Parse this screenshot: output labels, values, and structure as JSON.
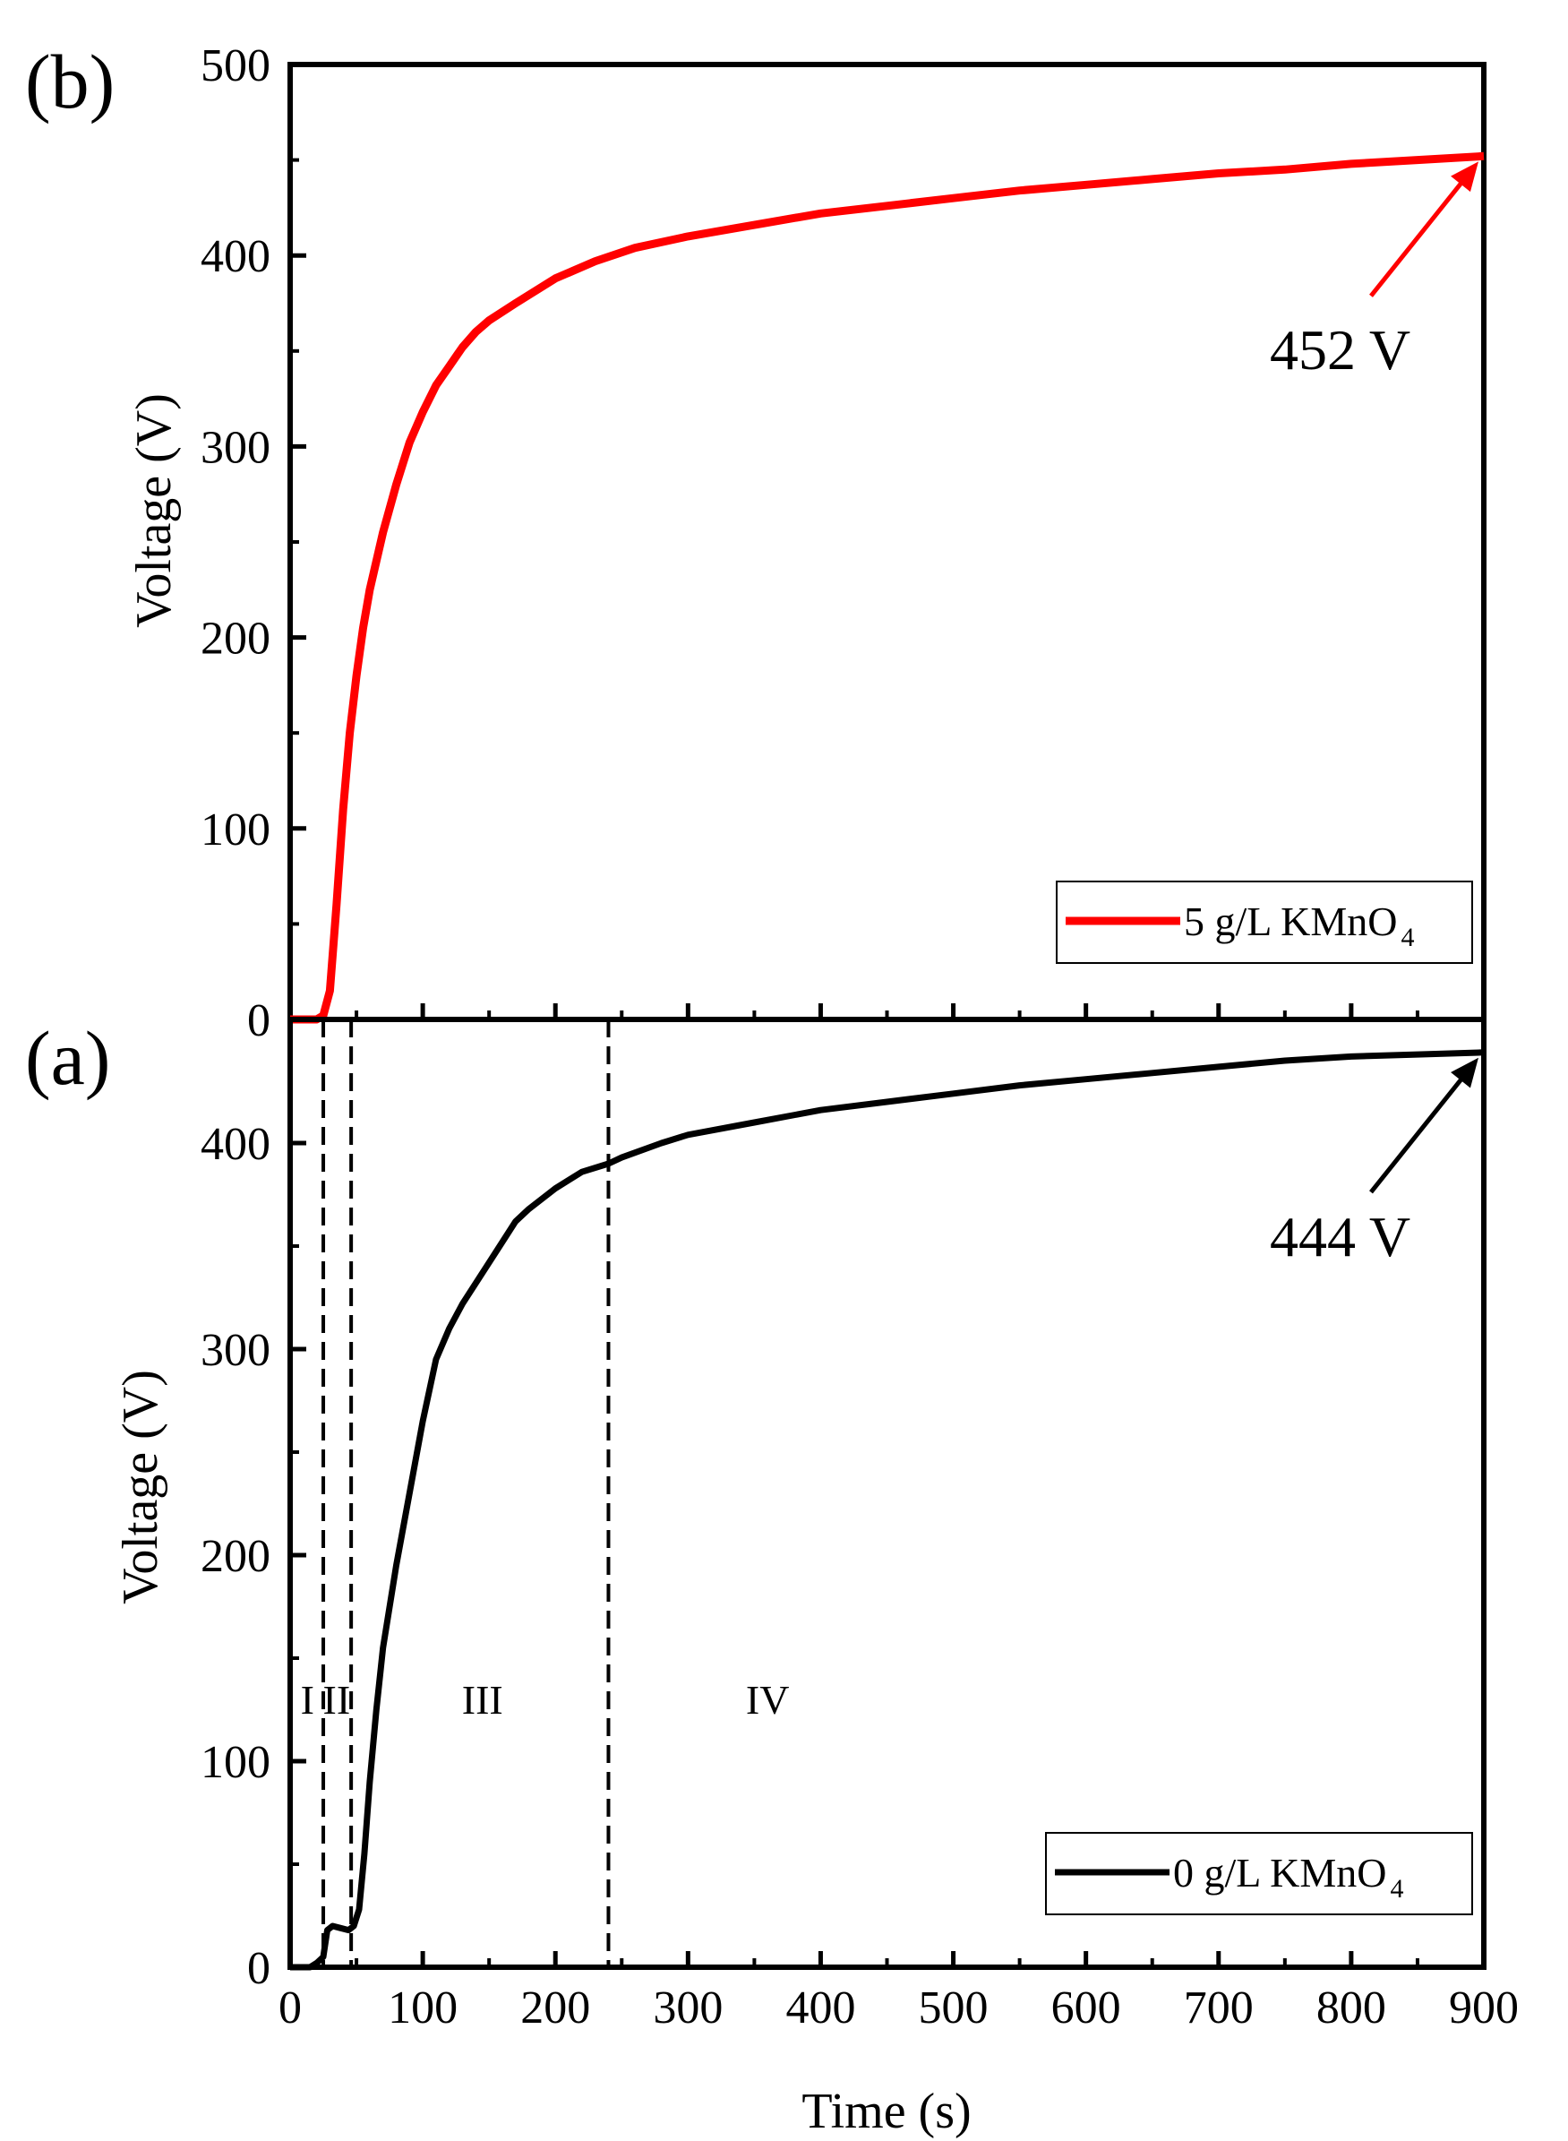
{
  "chart_data": [
    {
      "id": "b",
      "type": "line",
      "panel_label": "(b)",
      "xlabel": "",
      "ylabel": "Voltage (V)",
      "xlim": [
        0,
        900
      ],
      "ylim": [
        0,
        500
      ],
      "yticks": [
        0,
        100,
        200,
        300,
        400,
        500
      ],
      "ytick_labels": [
        "0",
        "100",
        "200",
        "300",
        "400",
        "500"
      ],
      "series": [
        {
          "name": "5 g/L KMnO4",
          "legend_main": "5 g/L KMnO",
          "legend_sub": "4",
          "color": "#ff0000",
          "x": [
            0,
            10,
            20,
            25,
            30,
            35,
            40,
            45,
            50,
            55,
            60,
            70,
            80,
            90,
            100,
            110,
            120,
            130,
            140,
            150,
            170,
            200,
            230,
            260,
            300,
            350,
            400,
            450,
            500,
            550,
            600,
            650,
            700,
            750,
            800,
            850,
            900
          ],
          "y": [
            0,
            0,
            0,
            2,
            15,
            60,
            110,
            150,
            180,
            205,
            225,
            255,
            280,
            302,
            318,
            332,
            342,
            352,
            360,
            366,
            375,
            388,
            397,
            404,
            410,
            416,
            422,
            426,
            430,
            434,
            437,
            440,
            443,
            445,
            448,
            450,
            452
          ]
        }
      ],
      "annotation": {
        "text": "452 V",
        "x": 900,
        "y": 452,
        "color": "#ff0000"
      }
    },
    {
      "id": "a",
      "type": "line",
      "panel_label": "(a)",
      "xlabel": "Time (s)",
      "ylabel": "Voltage (V)",
      "xlim": [
        0,
        900
      ],
      "ylim": [
        0,
        460
      ],
      "xticks": [
        0,
        100,
        200,
        300,
        400,
        500,
        600,
        700,
        800,
        900
      ],
      "xtick_labels": [
        "0",
        "100",
        "200",
        "300",
        "400",
        "500",
        "600",
        "700",
        "800",
        "900"
      ],
      "yticks": [
        0,
        100,
        200,
        300,
        400
      ],
      "ytick_labels": [
        "0",
        "100",
        "200",
        "300",
        "400"
      ],
      "series": [
        {
          "name": "0 g/L KMnO4",
          "legend_main": "0 g/L KMnO",
          "legend_sub": "4",
          "color": "#000000",
          "x": [
            0,
            15,
            20,
            25,
            28,
            32,
            38,
            44,
            48,
            52,
            56,
            60,
            65,
            70,
            80,
            90,
            100,
            110,
            120,
            130,
            150,
            170,
            180,
            200,
            220,
            240,
            250,
            280,
            300,
            350,
            400,
            450,
            500,
            550,
            600,
            650,
            700,
            750,
            800,
            850,
            900
          ],
          "y": [
            0,
            0,
            2,
            5,
            18,
            20,
            19,
            18,
            20,
            28,
            55,
            90,
            125,
            155,
            195,
            230,
            265,
            295,
            310,
            322,
            342,
            362,
            368,
            378,
            386,
            390,
            393,
            400,
            404,
            410,
            416,
            420,
            424,
            428,
            431,
            434,
            437,
            440,
            442,
            443,
            444
          ]
        }
      ],
      "vlines": [
        25,
        46,
        240
      ],
      "regions": [
        {
          "label": "I",
          "x": 13
        },
        {
          "label": "II",
          "x": 35
        },
        {
          "label": "III",
          "x": 145
        },
        {
          "label": "IV",
          "x": 360
        }
      ],
      "region_label_y": 130,
      "annotation": {
        "text": "444 V",
        "x": 900,
        "y": 444,
        "color": "#000000"
      }
    }
  ]
}
